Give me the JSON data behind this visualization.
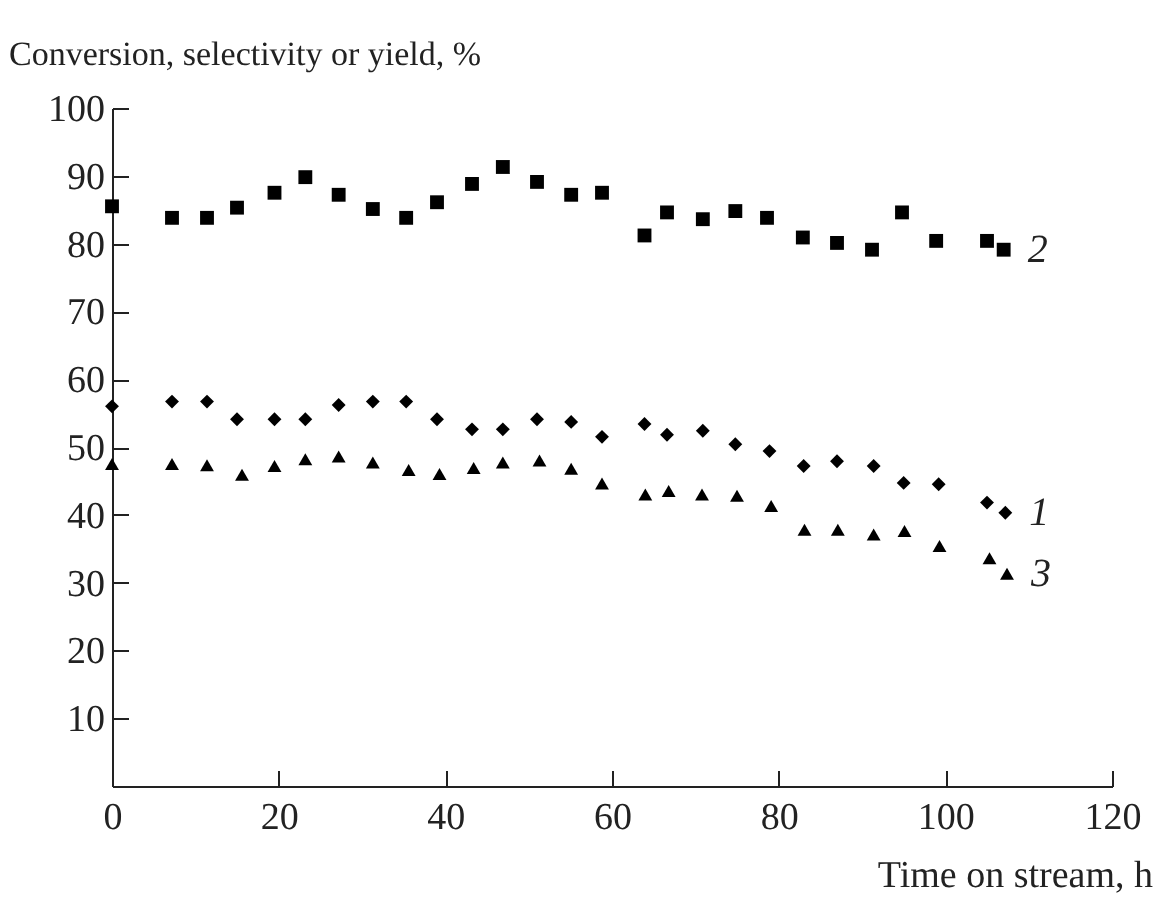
{
  "chart_data": {
    "type": "scatter",
    "xlabel": "Time on stream, h",
    "ylabel": "Conversion, selectivity or yield, %",
    "xlim": [
      0,
      120
    ],
    "xticks": [
      0,
      20,
      40,
      60,
      80,
      100,
      120
    ],
    "ylim": [
      0,
      100
    ],
    "yticks": [
      10,
      20,
      30,
      40,
      50,
      60,
      70,
      80,
      90,
      100
    ],
    "grid": false,
    "series": [
      {
        "name": "1",
        "color": "#000000",
        "marker": "diamond",
        "x": [
          0,
          7.2,
          11.4,
          15.0,
          19.5,
          23.2,
          27.2,
          31.3,
          35.3,
          39.0,
          43.2,
          46.9,
          51.0,
          55.1,
          58.8,
          63.9,
          66.6,
          70.9,
          74.8,
          78.9,
          83.0,
          87.0,
          91.4,
          95.0,
          99.2,
          105.0,
          107.2
        ],
        "values": [
          56.0,
          56.7,
          56.7,
          54.1,
          54.1,
          54.1,
          56.2,
          56.7,
          56.7,
          54.1,
          52.6,
          52.6,
          54.1,
          53.7,
          51.5,
          53.4,
          51.8,
          52.4,
          50.4,
          49.4,
          47.2,
          47.9,
          47.2,
          44.7,
          44.5,
          41.8,
          40.3
        ]
      },
      {
        "name": "2",
        "color": "#000000",
        "marker": "square",
        "x": [
          0,
          7.2,
          11.4,
          15.0,
          19.5,
          23.2,
          27.2,
          31.3,
          35.3,
          39.0,
          43.2,
          46.9,
          51.0,
          55.1,
          58.8,
          63.9,
          66.6,
          70.9,
          74.8,
          78.6,
          82.9,
          87.0,
          91.2,
          94.8,
          98.9,
          105.0,
          107.0
        ],
        "values": [
          85.5,
          83.8,
          83.8,
          85.3,
          87.5,
          89.8,
          87.2,
          85.1,
          83.8,
          86.1,
          88.8,
          91.3,
          89.1,
          87.2,
          87.5,
          81.2,
          84.6,
          83.6,
          84.8,
          83.8,
          80.9,
          80.1,
          79.1,
          84.6,
          80.4,
          80.4,
          79.1
        ]
      },
      {
        "name": "3",
        "color": "#000000",
        "marker": "triangle",
        "x": [
          0,
          7.2,
          11.4,
          15.6,
          19.5,
          23.2,
          27.2,
          31.3,
          35.6,
          39.3,
          43.4,
          46.9,
          51.3,
          55.1,
          58.8,
          64.0,
          66.8,
          70.8,
          75.0,
          79.1,
          83.1,
          87.1,
          91.4,
          95.1,
          99.3,
          105.3,
          107.4
        ],
        "values": [
          47.5,
          47.5,
          47.3,
          45.9,
          47.2,
          48.2,
          48.6,
          47.7,
          46.6,
          46.0,
          46.9,
          47.7,
          48.0,
          46.8,
          44.6,
          43.0,
          43.5,
          43.0,
          42.8,
          41.3,
          37.8,
          37.8,
          37.1,
          37.6,
          35.4,
          33.6,
          31.3
        ]
      }
    ]
  }
}
